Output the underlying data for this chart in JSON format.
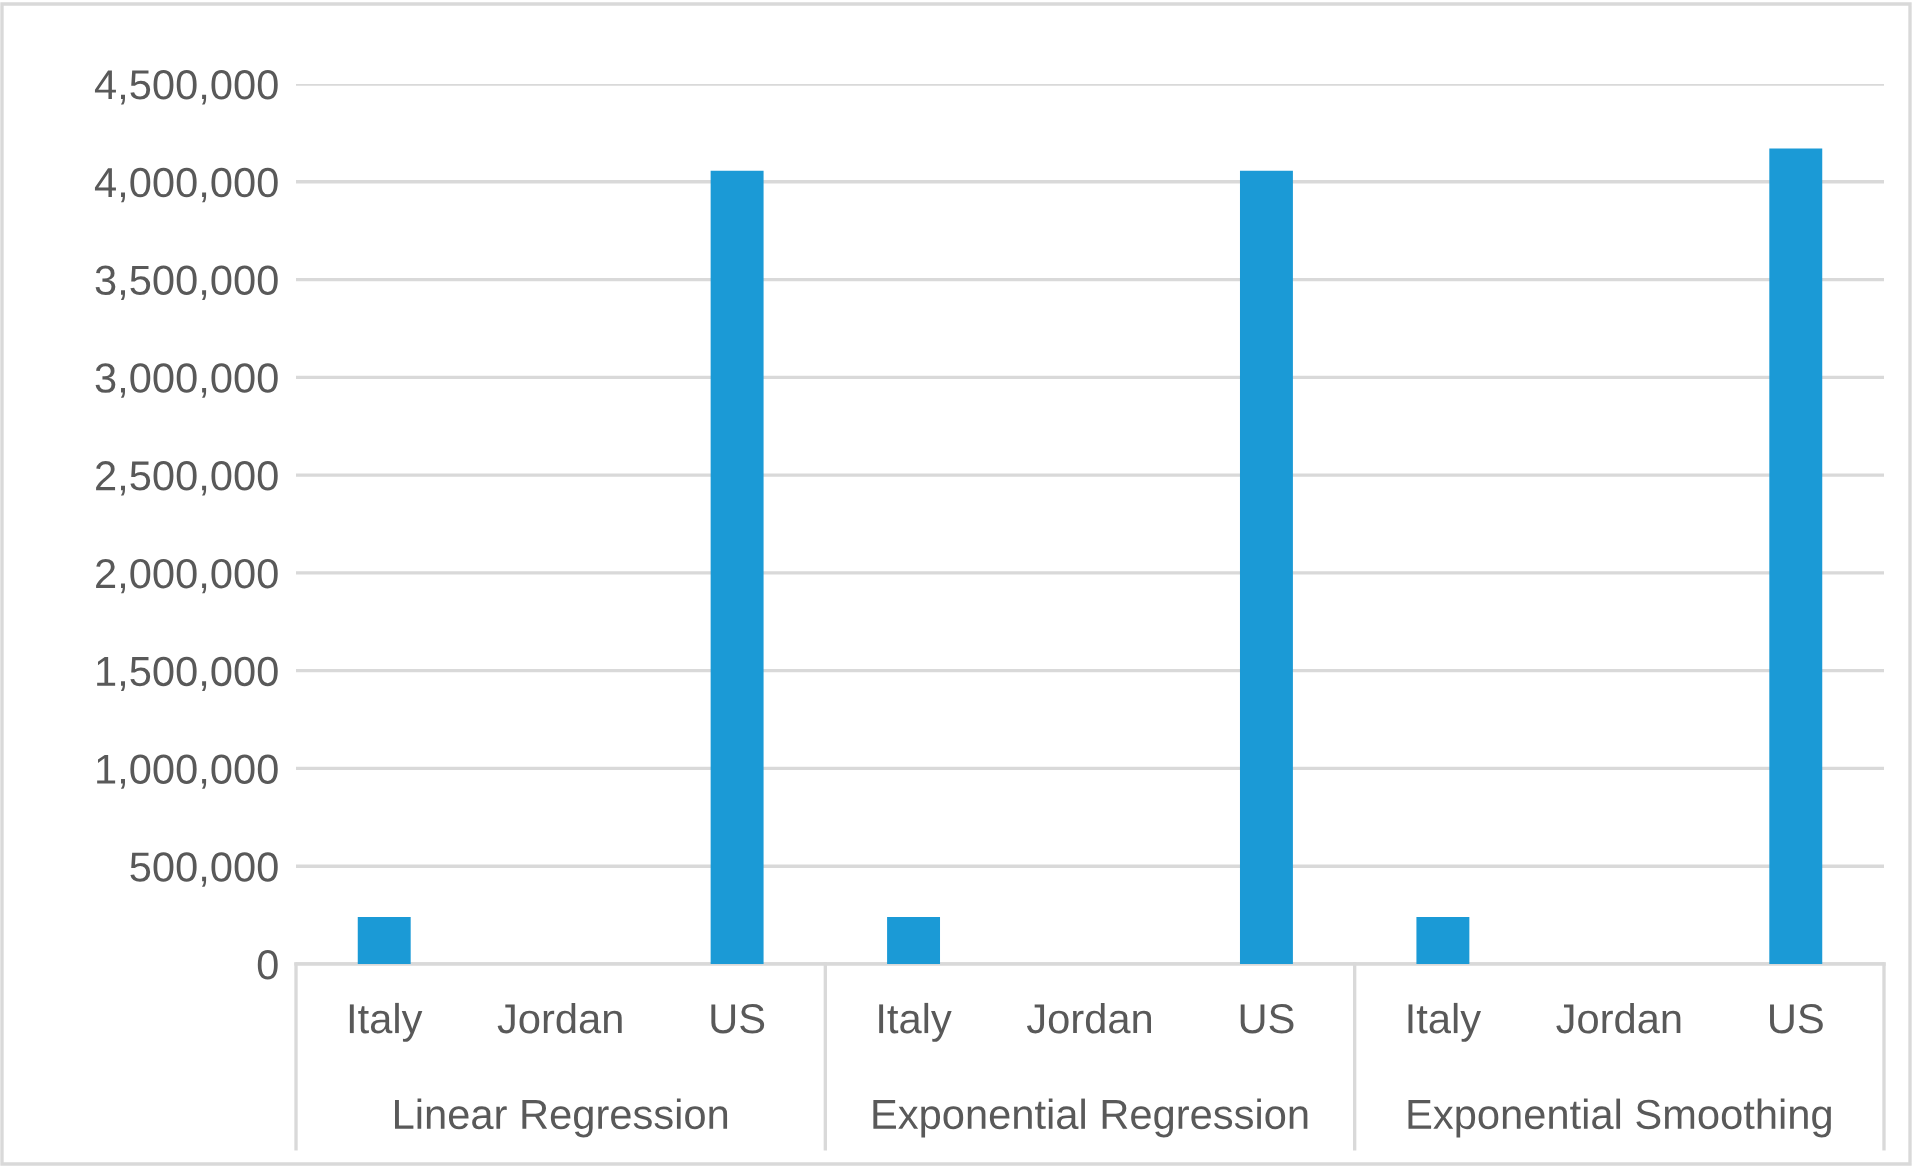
{
  "chart_data": {
    "type": "bar",
    "categories": [
      "Italy",
      "Jordan",
      "US",
      "Italy",
      "Jordan",
      "US",
      "Italy",
      "Jordan",
      "US"
    ],
    "values": [
      240000,
      0,
      4057000,
      240000,
      0,
      4057000,
      240000,
      0,
      4170000
    ],
    "color": "#1b9ad6",
    "ylim": [
      0,
      4500000
    ],
    "yticks": [
      {
        "value": 0,
        "label": "0"
      },
      {
        "value": 500000,
        "label": "500,000"
      },
      {
        "value": 1000000,
        "label": "1,000,000"
      },
      {
        "value": 1500000,
        "label": "1,500,000"
      },
      {
        "value": 2000000,
        "label": "2,000,000"
      },
      {
        "value": 2500000,
        "label": "2,500,000"
      },
      {
        "value": 3000000,
        "label": "3,000,000"
      },
      {
        "value": 3500000,
        "label": "3,500,000"
      },
      {
        "value": 4000000,
        "label": "4,000,000"
      },
      {
        "value": 4500000,
        "label": "4,500,000"
      }
    ],
    "grid": "y",
    "annotations": [
      "Linear Regression",
      "Exponential Regression",
      "Exponential Smoothing"
    ]
  }
}
